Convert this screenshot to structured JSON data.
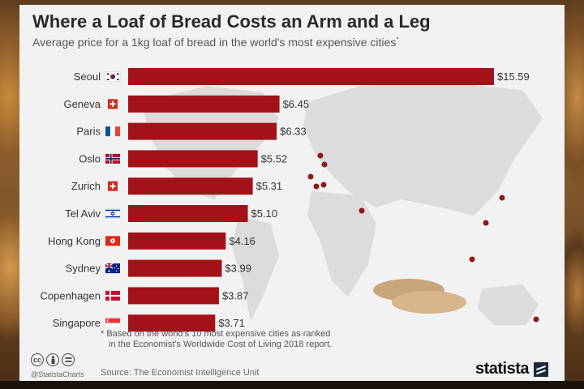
{
  "chart_data": {
    "type": "bar",
    "orientation": "horizontal",
    "title": "Where a Loaf of Bread Costs an Arm and a Leg",
    "subtitle": "Average price for a 1kg loaf of bread in the world's most expensive cities",
    "subtitle_mark": "*",
    "categories": [
      "Seoul",
      "Geneva",
      "Paris",
      "Oslo",
      "Zurich",
      "Tel Aviv",
      "Hong Kong",
      "Sydney",
      "Copenhagen",
      "Singapore"
    ],
    "values": [
      15.59,
      6.45,
      6.33,
      5.52,
      5.31,
      5.1,
      4.16,
      3.99,
      3.87,
      3.71
    ],
    "value_labels": [
      "$15.59",
      "$6.45",
      "$6.33",
      "$5.52",
      "$5.31",
      "$5.10",
      "$4.16",
      "$3.99",
      "$3.87",
      "$3.71"
    ],
    "flags": [
      "south-korea-flag-icon",
      "switzerland-flag-icon",
      "france-flag-icon",
      "norway-flag-icon",
      "switzerland-flag-icon",
      "israel-flag-icon",
      "hong-kong-flag-icon",
      "australia-flag-icon",
      "denmark-flag-icon",
      "singapore-flag-icon"
    ],
    "bar_color": "#a31218",
    "xlim": [
      0,
      15.59
    ],
    "grid": false,
    "legend": "none"
  },
  "footnote": {
    "line1": "* Based on the world's 10 most expensive cities as ranked",
    "line2": "in the Economist's Worldwide Cost of Living 2018 report."
  },
  "source": "Source: The Economist Intelligence Unit",
  "handle": "@StatistaCharts",
  "brand": "statista",
  "license_icons": [
    "cc-icon",
    "by-icon",
    "nd-icon"
  ],
  "colors": {
    "background": "#f2f2f2",
    "map": "#dcdcdc",
    "city_dot": "#8e1a16",
    "title": "#2a2a2a"
  }
}
